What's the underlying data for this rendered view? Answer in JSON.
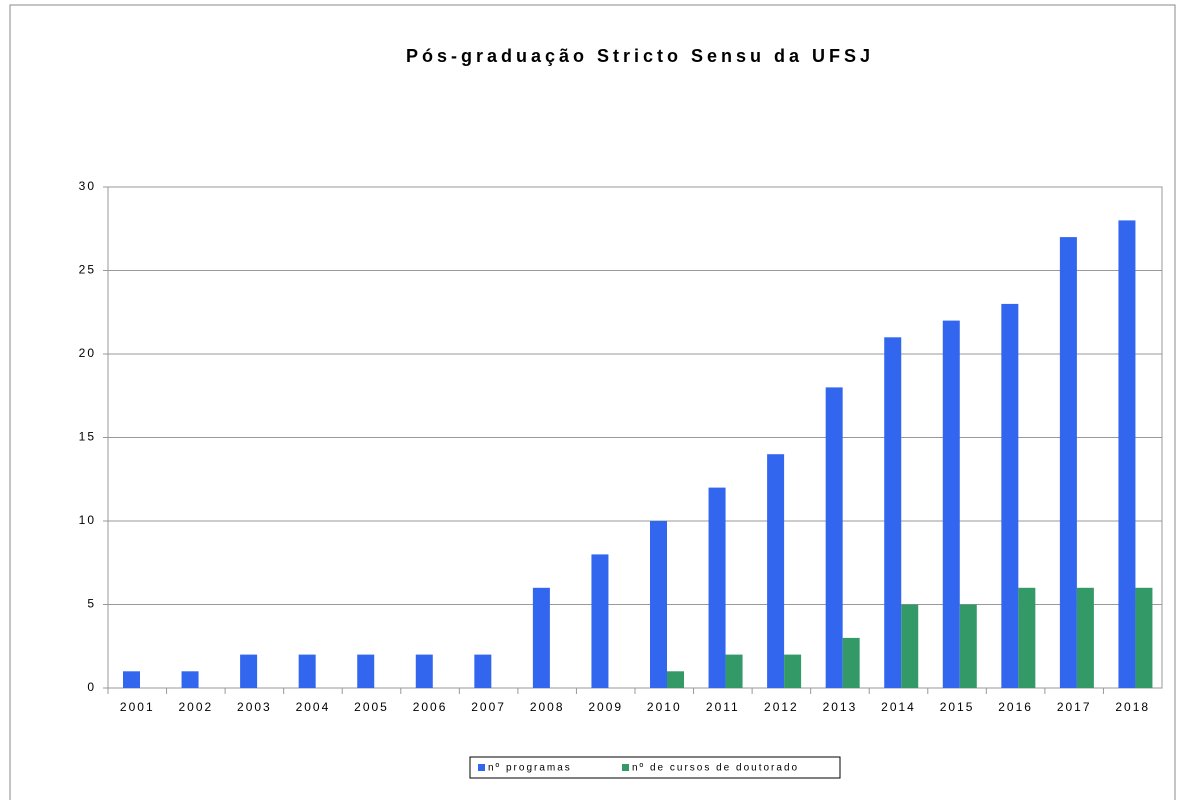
{
  "chart_data": {
    "type": "bar",
    "title": "Pós-graduação Stricto Sensu da UFSJ",
    "categories": [
      "2001",
      "2002",
      "2003",
      "2004",
      "2005",
      "2006",
      "2007",
      "2008",
      "2009",
      "2010",
      "2011",
      "2012",
      "2013",
      "2014",
      "2015",
      "2016",
      "2017",
      "2018"
    ],
    "series": [
      {
        "name": "nº programas",
        "color": "#3366ee",
        "values": [
          1,
          1,
          2,
          2,
          2,
          2,
          2,
          6,
          8,
          10,
          12,
          14,
          18,
          21,
          22,
          23,
          27,
          28
        ]
      },
      {
        "name": "nº de cursos de doutorado",
        "color": "#339966",
        "values": [
          0,
          0,
          0,
          0,
          0,
          0,
          0,
          0,
          0,
          1,
          2,
          2,
          3,
          5,
          5,
          6,
          6,
          6
        ]
      }
    ],
    "ylim": [
      0,
      30
    ],
    "yticks": [
      0,
      5,
      10,
      15,
      20,
      25,
      30
    ],
    "grid": true,
    "legend": "bottom"
  }
}
